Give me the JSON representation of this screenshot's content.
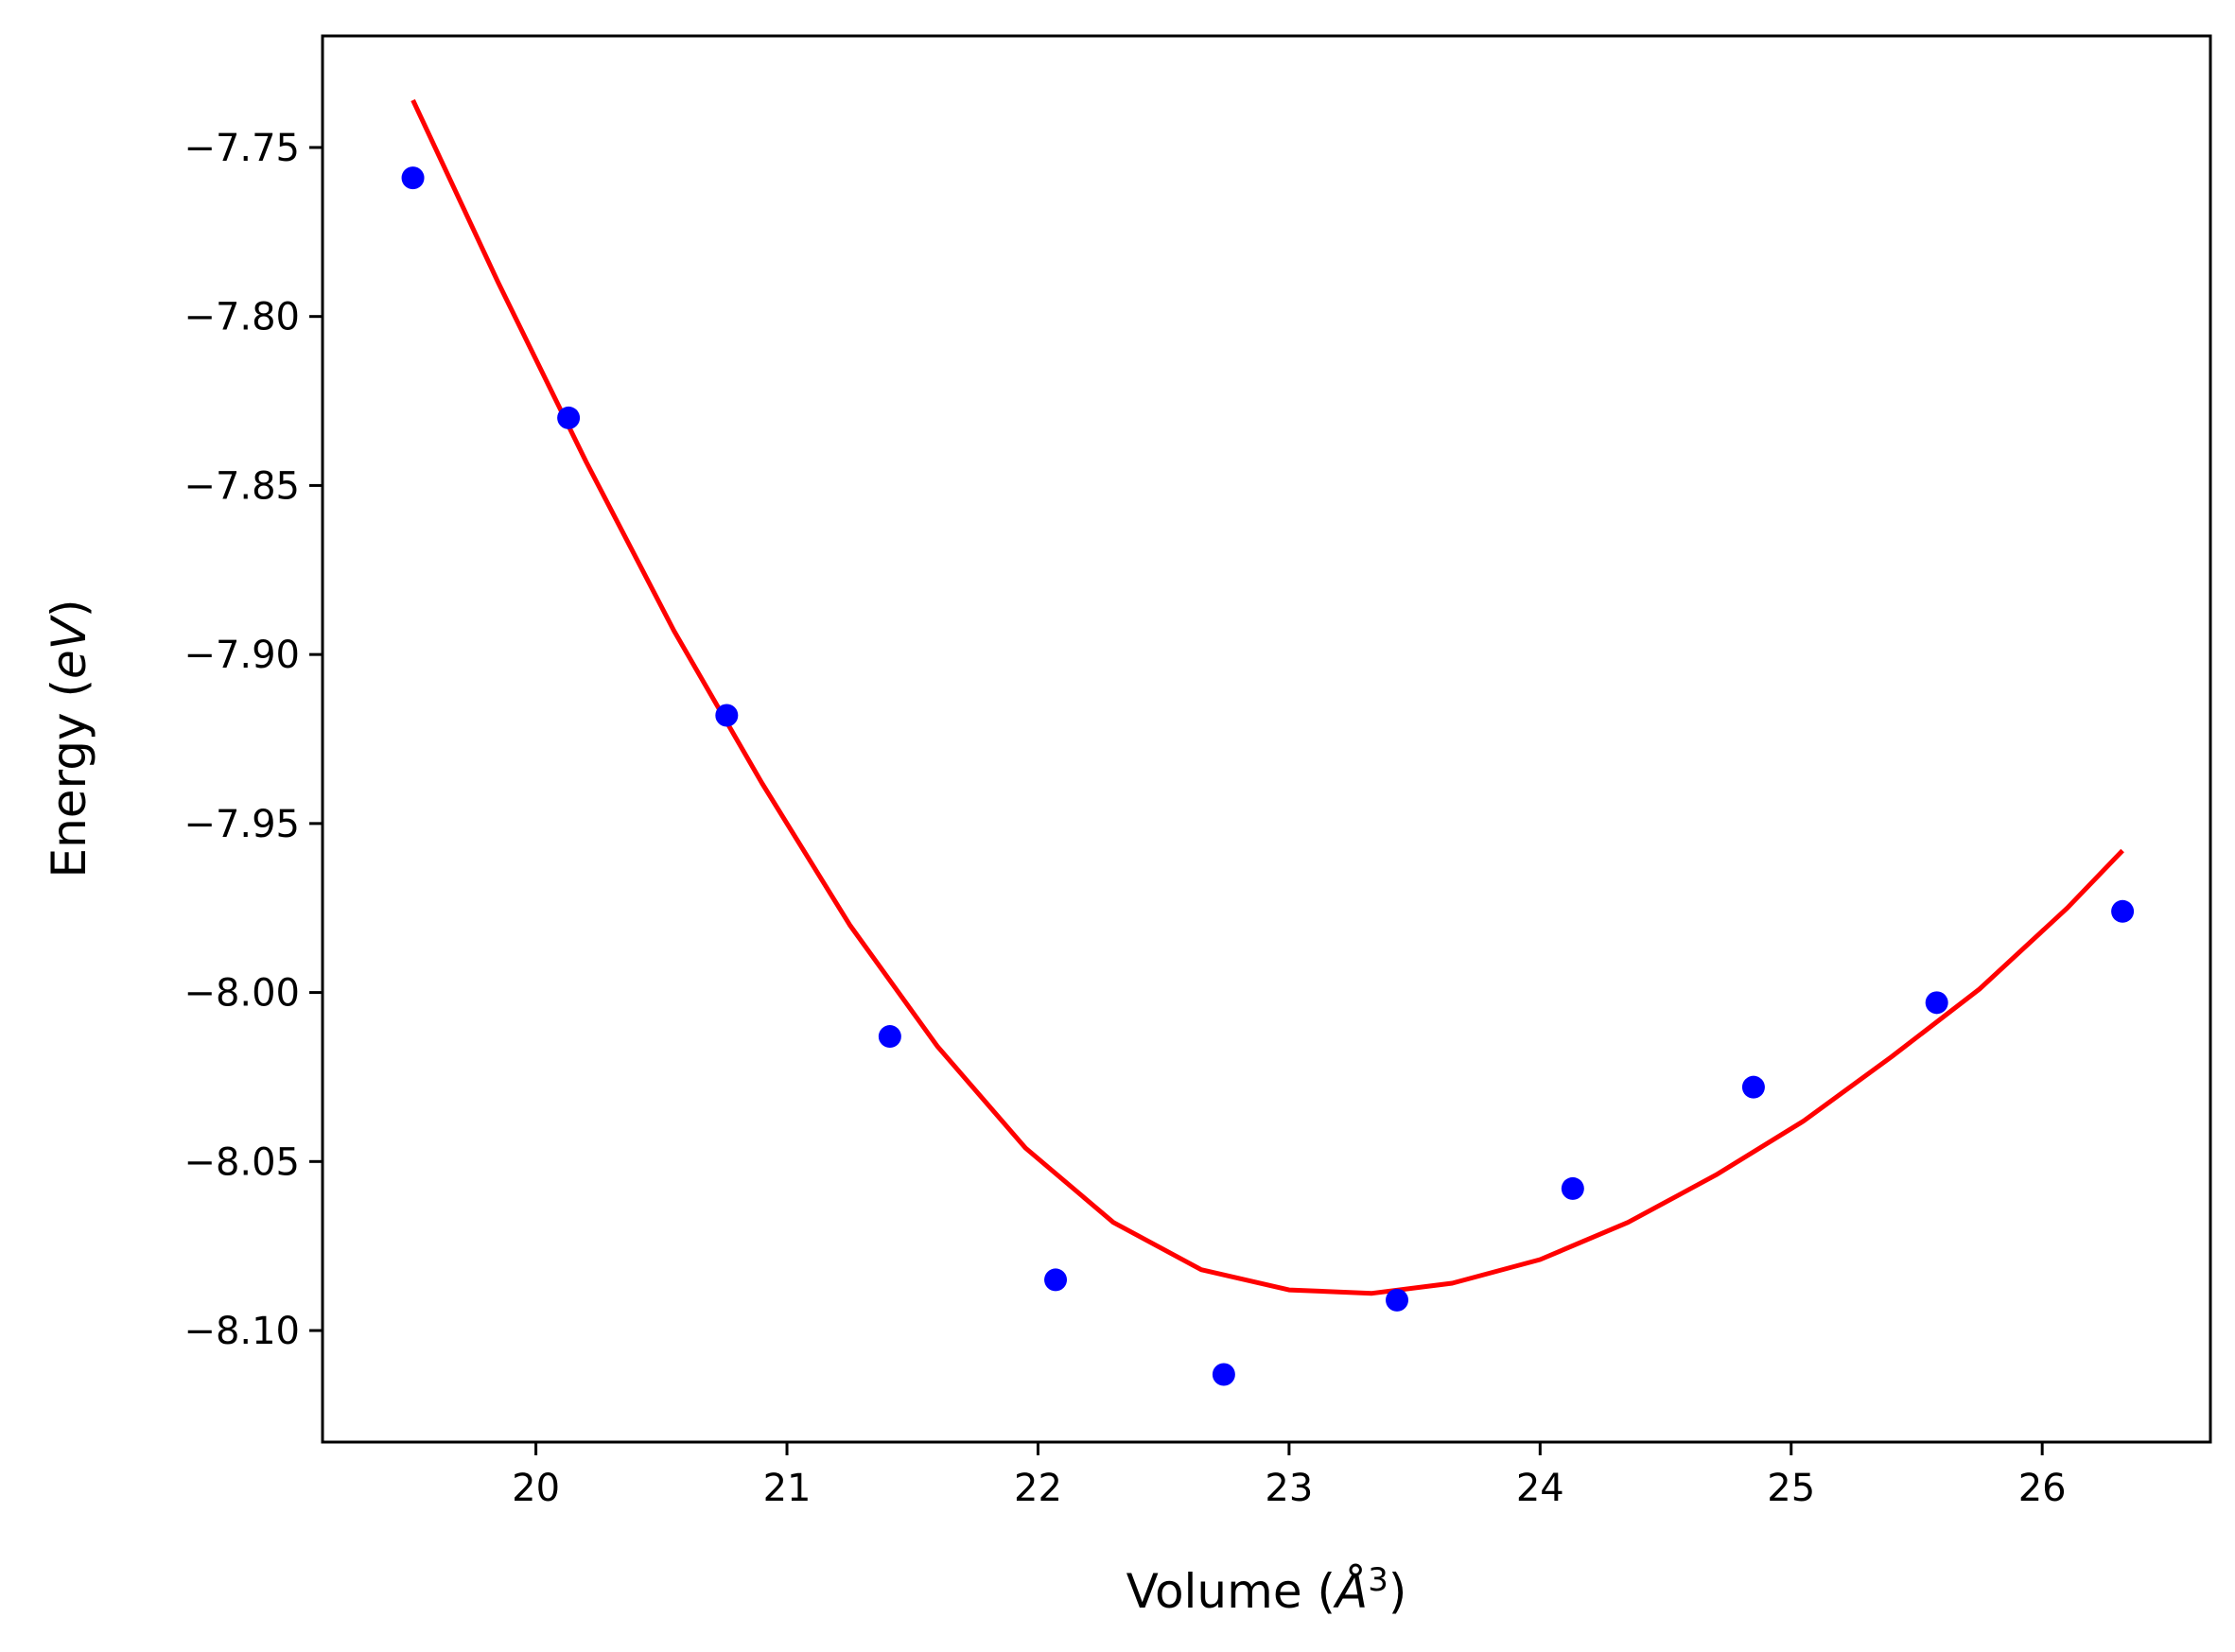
{
  "chart_data": {
    "type": "scatter",
    "title": "",
    "xlabel_parts": [
      "Volume (",
      "Å",
      "3",
      ")"
    ],
    "ylabel_parts": [
      "Energy (",
      "eV",
      ")"
    ],
    "xlim": [
      19.15,
      26.67
    ],
    "ylim": [
      -8.133,
      -7.717
    ],
    "xticks": [
      20,
      21,
      22,
      23,
      24,
      25,
      26
    ],
    "xtick_labels": [
      "20",
      "21",
      "22",
      "23",
      "24",
      "25",
      "26"
    ],
    "yticks": [
      -7.75,
      -7.8,
      -7.85,
      -7.9,
      -7.95,
      -8.0,
      -8.05,
      -8.1
    ],
    "ytick_labels": [
      "−7.75",
      "−7.80",
      "−7.85",
      "−7.90",
      "−7.95",
      "−8.00",
      "−8.05",
      "−8.10"
    ],
    "grid": false,
    "series": [
      {
        "kind": "points",
        "color": "#0000ff",
        "x": [
          19.51,
          20.13,
          20.76,
          21.41,
          22.07,
          22.74,
          23.43,
          24.13,
          24.85,
          25.58,
          26.32
        ],
        "y": [
          -7.759,
          -7.83,
          -7.918,
          -8.013,
          -8.085,
          -8.113,
          -8.091,
          -8.058,
          -8.028,
          -8.003,
          -7.976
        ]
      },
      {
        "kind": "line",
        "color": "#ff0000",
        "x": [
          19.51,
          19.85,
          20.2,
          20.55,
          20.9,
          21.25,
          21.6,
          21.95,
          22.3,
          22.65,
          23.0,
          23.33,
          23.65,
          24.0,
          24.35,
          24.7,
          25.05,
          25.4,
          25.75,
          26.1,
          26.32
        ],
        "y": [
          -7.736,
          -7.79,
          -7.843,
          -7.893,
          -7.938,
          -7.98,
          -8.016,
          -8.046,
          -8.068,
          -8.082,
          -8.088,
          -8.089,
          -8.086,
          -8.079,
          -8.068,
          -8.054,
          -8.038,
          -8.019,
          -7.999,
          -7.975,
          -7.958
        ]
      }
    ]
  }
}
